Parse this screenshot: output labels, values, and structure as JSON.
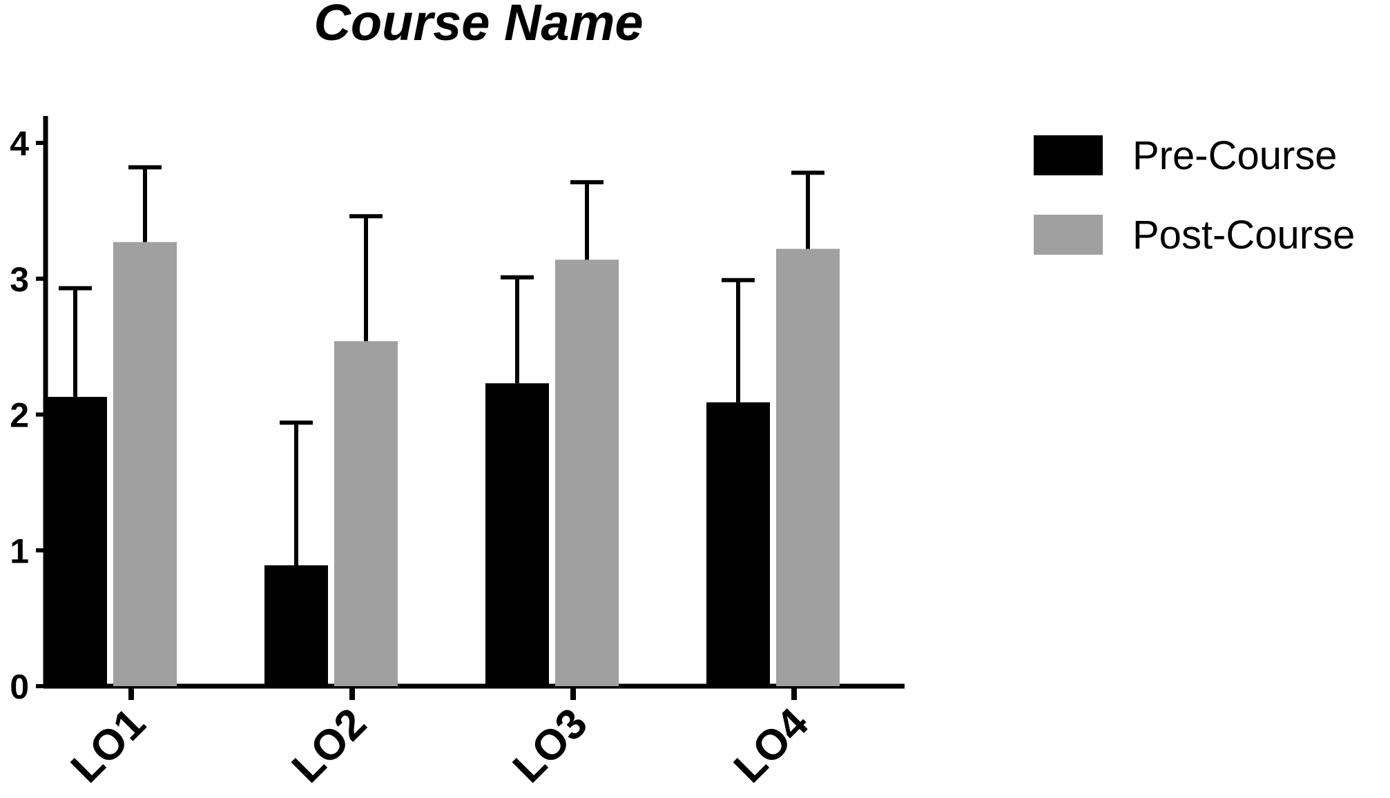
{
  "chart_data": {
    "type": "bar",
    "title": "Course Name",
    "xlabel": "",
    "ylabel": "",
    "categories": [
      "LO1",
      "LO2",
      "LO3",
      "LO4"
    ],
    "ylim": [
      0,
      4
    ],
    "yticks": [
      "0",
      "1",
      "2",
      "3",
      "4"
    ],
    "series": [
      {
        "name": "Pre-Course",
        "color": "#000000",
        "values": [
          2.13,
          0.89,
          2.23,
          2.09
        ],
        "error_upper": [
          2.93,
          1.94,
          3.01,
          2.99
        ]
      },
      {
        "name": "Post-Course",
        "color": "#a0a0a0",
        "values": [
          3.27,
          2.54,
          3.14,
          3.22
        ],
        "error_upper": [
          3.82,
          3.46,
          3.71,
          3.78
        ]
      }
    ],
    "grid": false,
    "legend_position": "top-right"
  }
}
